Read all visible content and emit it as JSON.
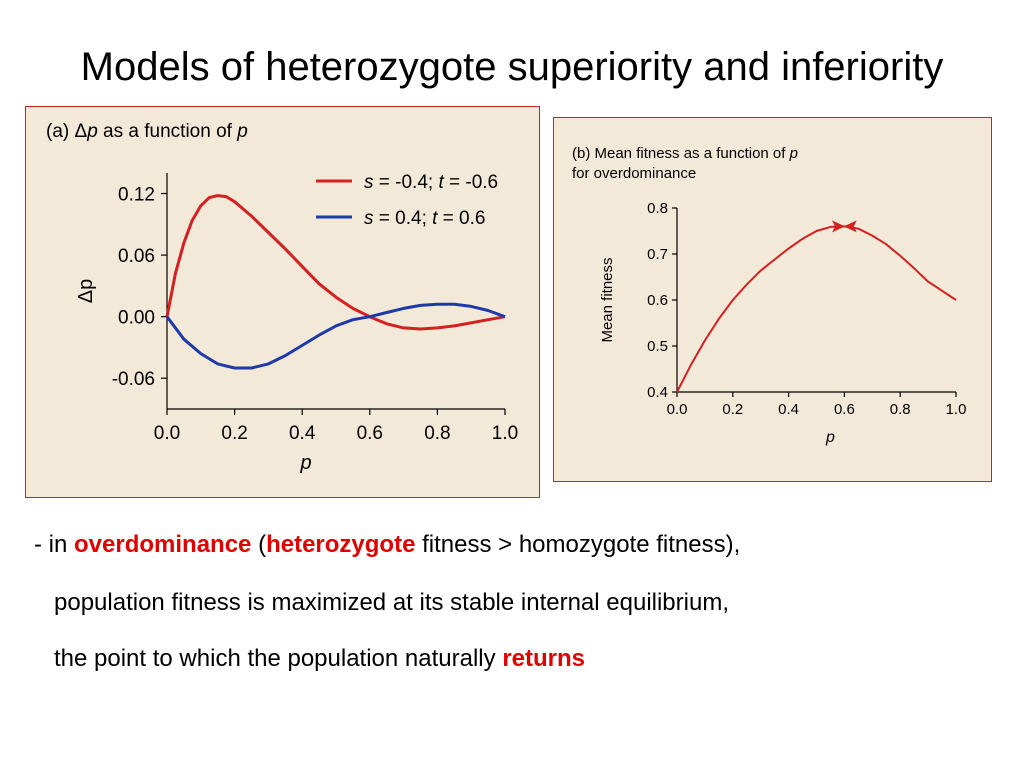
{
  "slide": {
    "title": "Models of heterozygote superiority and inferiority"
  },
  "colors": {
    "red": "#d42020",
    "blue": "#1e3aa8",
    "border": "#cc2222",
    "panel_bg": "#f3e9d9"
  },
  "chart_data": [
    {
      "type": "line",
      "panel_label": "(a) Δp as a function of p",
      "xlabel": "p",
      "ylabel": "Δp",
      "xlim": [
        0.0,
        1.0
      ],
      "ylim": [
        -0.09,
        0.14
      ],
      "xticks": [
        "0.0",
        "0.2",
        "0.4",
        "0.6",
        "0.8",
        "1.0"
      ],
      "xtick_values": [
        0.0,
        0.2,
        0.4,
        0.6,
        0.8,
        1.0
      ],
      "yticks": [
        "0.12",
        "0.06",
        "0.00",
        "-0.06"
      ],
      "ytick_values": [
        0.12,
        0.06,
        0.0,
        -0.06
      ],
      "grid": false,
      "legend_position": "top-right",
      "series": [
        {
          "name": "s = -0.4; t = -0.6",
          "color": "#d42020",
          "x": [
            0.0,
            0.025,
            0.05,
            0.075,
            0.1,
            0.125,
            0.15,
            0.175,
            0.2,
            0.25,
            0.3,
            0.35,
            0.4,
            0.45,
            0.5,
            0.55,
            0.6,
            0.65,
            0.7,
            0.75,
            0.8,
            0.85,
            0.9,
            0.95,
            1.0
          ],
          "y": [
            0.0,
            0.042,
            0.072,
            0.094,
            0.108,
            0.116,
            0.118,
            0.117,
            0.112,
            0.098,
            0.082,
            0.066,
            0.049,
            0.032,
            0.019,
            0.008,
            0.0,
            -0.007,
            -0.011,
            -0.012,
            -0.011,
            -0.009,
            -0.006,
            -0.003,
            0.0
          ]
        },
        {
          "name": "s = 0.4; t = 0.6",
          "color": "#1e3aa8",
          "x": [
            0.0,
            0.05,
            0.1,
            0.15,
            0.2,
            0.25,
            0.3,
            0.35,
            0.4,
            0.45,
            0.5,
            0.55,
            0.6,
            0.65,
            0.7,
            0.75,
            0.8,
            0.85,
            0.9,
            0.95,
            1.0
          ],
          "y": [
            0.0,
            -0.022,
            -0.036,
            -0.046,
            -0.05,
            -0.05,
            -0.046,
            -0.038,
            -0.028,
            -0.018,
            -0.009,
            -0.003,
            0.0,
            0.004,
            0.008,
            0.011,
            0.012,
            0.012,
            0.01,
            0.006,
            0.0
          ]
        }
      ]
    },
    {
      "type": "line",
      "panel_label_lines": [
        "(b) Mean fitness as a function of p",
        "for overdominance"
      ],
      "xlabel": "p",
      "ylabel": "Mean fitness",
      "xlim": [
        0.0,
        1.0
      ],
      "ylim": [
        0.4,
        0.8
      ],
      "xticks": [
        "0.0",
        "0.2",
        "0.4",
        "0.6",
        "0.8",
        "1.0"
      ],
      "xtick_values": [
        0.0,
        0.2,
        0.4,
        0.6,
        0.8,
        1.0
      ],
      "yticks": [
        "0.8",
        "0.7",
        "0.6",
        "0.5",
        "0.4"
      ],
      "ytick_values": [
        0.8,
        0.7,
        0.6,
        0.5,
        0.4
      ],
      "grid": false,
      "series": [
        {
          "color": "#d42020",
          "x": [
            0.0,
            0.05,
            0.1,
            0.15,
            0.2,
            0.25,
            0.3,
            0.35,
            0.4,
            0.45,
            0.5,
            0.55,
            0.6,
            0.65,
            0.7,
            0.75,
            0.8,
            0.85,
            0.9,
            0.95,
            1.0
          ],
          "y": [
            0.4,
            0.459,
            0.512,
            0.559,
            0.6,
            0.634,
            0.664,
            0.688,
            0.712,
            0.733,
            0.75,
            0.759,
            0.76,
            0.755,
            0.74,
            0.721,
            0.696,
            0.669,
            0.64,
            0.62,
            0.6
          ]
        }
      ],
      "annotations": [
        {
          "type": "arrow",
          "x": 0.57,
          "y": 0.76,
          "direction": "right"
        },
        {
          "type": "arrow",
          "x": 0.63,
          "y": 0.76,
          "direction": "left"
        }
      ]
    }
  ],
  "caption": {
    "line1_prefix": "- in ",
    "line1_hl1": "overdominance",
    "line1_mid": " (",
    "line1_hl2": "heterozygote",
    "line1_suffix": " fitness > homozygote fitness),",
    "line2": "population fitness is maximized at its stable internal equilibrium,",
    "line3_prefix": "the point to which the population naturally ",
    "line3_hl": "returns"
  }
}
